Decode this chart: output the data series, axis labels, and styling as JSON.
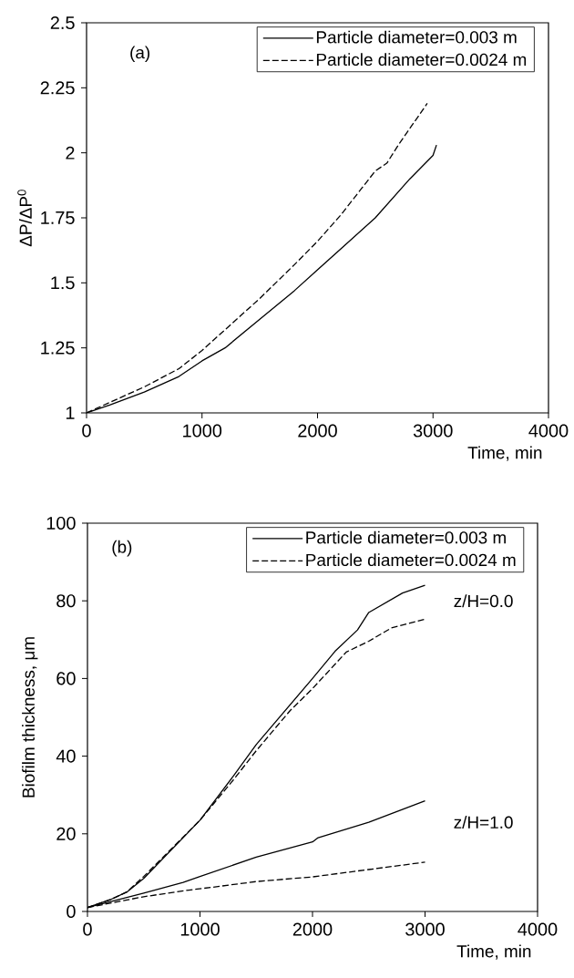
{
  "chart_data": [
    {
      "type": "line",
      "xlabel": "Time, min",
      "ylabel": "ΔP/ΔP$^{0}$",
      "xlim": [
        0,
        4000
      ],
      "ylim": [
        1,
        2.5
      ],
      "xticks": [
        0,
        1000,
        2000,
        3000,
        4000
      ],
      "yticks": [
        1,
        1.25,
        1.5,
        1.75,
        2,
        2.25,
        2.5
      ],
      "legend": "top right",
      "annotations": [
        "(a)"
      ],
      "series": [
        {
          "name": "Particle diameter=0.003 m",
          "color": "#000000",
          "line_style": "solid",
          "x": [
            0,
            200,
            500,
            800,
            1000,
            1200,
            1500,
            1800,
            2000,
            2200,
            2500,
            2800,
            3000,
            3030
          ],
          "values": [
            1.0,
            1.03,
            1.08,
            1.14,
            1.2,
            1.25,
            1.36,
            1.47,
            1.55,
            1.63,
            1.75,
            1.9,
            1.99,
            2.03
          ]
        },
        {
          "name": "Particle diameter=0.0024 m",
          "color": "#000000",
          "line_style": "dashed",
          "x": [
            0,
            200,
            500,
            800,
            1000,
            1200,
            1500,
            1800,
            2000,
            2200,
            2500,
            2600,
            2700,
            2950
          ],
          "values": [
            1.0,
            1.04,
            1.1,
            1.17,
            1.24,
            1.32,
            1.44,
            1.57,
            1.66,
            1.76,
            1.93,
            1.96,
            2.03,
            2.19
          ]
        }
      ]
    },
    {
      "type": "line",
      "xlabel": "Time, min",
      "ylabel": "Biofilm thickness, μm",
      "xlim": [
        0,
        4000
      ],
      "ylim": [
        0,
        100
      ],
      "xticks": [
        0,
        1000,
        2000,
        3000,
        4000
      ],
      "yticks": [
        0,
        20,
        40,
        60,
        80,
        100
      ],
      "legend": "top right",
      "annotations": [
        "(b)",
        "z/H=0.0",
        "z/H=1.0"
      ],
      "series": [
        {
          "name": "Particle diameter=0.003 m",
          "color": "#000000",
          "line_style": "solid",
          "x": [
            0,
            200,
            350,
            500,
            1000,
            1300,
            1500,
            2000,
            2200,
            2400,
            2500,
            2800,
            3000
          ],
          "values": [
            1,
            3,
            5,
            8.5,
            23.5,
            35,
            43,
            60,
            67,
            72.5,
            77,
            82,
            84
          ]
        },
        {
          "name": "Particle diameter=0.0024 m",
          "color": "#000000",
          "line_style": "dashed",
          "x": [
            0,
            200,
            350,
            500,
            1000,
            1300,
            1500,
            1800,
            2000,
            2300,
            2500,
            2700,
            3000
          ],
          "values": [
            1,
            3,
            5,
            9,
            23.5,
            34,
            41.4,
            51.7,
            57.4,
            66.8,
            69.6,
            73,
            75.3
          ]
        },
        {
          "color": "#000000",
          "line_style": "solid",
          "x": [
            0,
            200,
            500,
            850,
            1000,
            1500,
            2000,
            2050,
            2500,
            3000
          ],
          "values": [
            1,
            2.5,
            4.7,
            7.5,
            9,
            14,
            17.9,
            19,
            23,
            28.5
          ]
        },
        {
          "color": "#000000",
          "line_style": "dashed",
          "x": [
            0,
            500,
            900,
            1100,
            1500,
            2000,
            2500,
            3000
          ],
          "values": [
            1,
            3.8,
            5.5,
            6.2,
            7.7,
            8.9,
            10.8,
            12.7
          ]
        }
      ]
    }
  ]
}
